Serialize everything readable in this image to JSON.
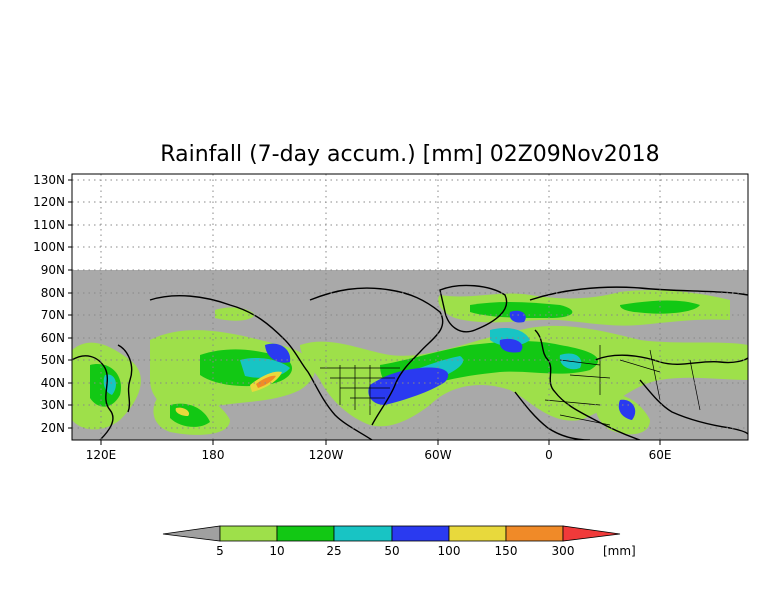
{
  "map": {
    "title": "Rainfall (7-day accum.) [mm] 02Z09Nov2018",
    "lat_labels": [
      "130N",
      "120N",
      "110N",
      "100N",
      "90N",
      "80N",
      "70N",
      "60N",
      "50N",
      "40N",
      "30N",
      "20N"
    ],
    "lon_labels": [
      "120E",
      "180",
      "120W",
      "60W",
      "0",
      "60E"
    ],
    "colors": {
      "no_data": "#a9a9a9",
      "land_outline": "#000000",
      "grid": "#888888"
    }
  },
  "colorbar": {
    "unit": "[mm]",
    "labels": [
      "5",
      "10",
      "25",
      "50",
      "100",
      "150",
      "300"
    ],
    "colors": [
      "#a0a0a0",
      "#9ee04a",
      "#12c814",
      "#18c4c4",
      "#2a3af0",
      "#e8d93c",
      "#f08a28",
      "#f03a3a"
    ]
  }
}
